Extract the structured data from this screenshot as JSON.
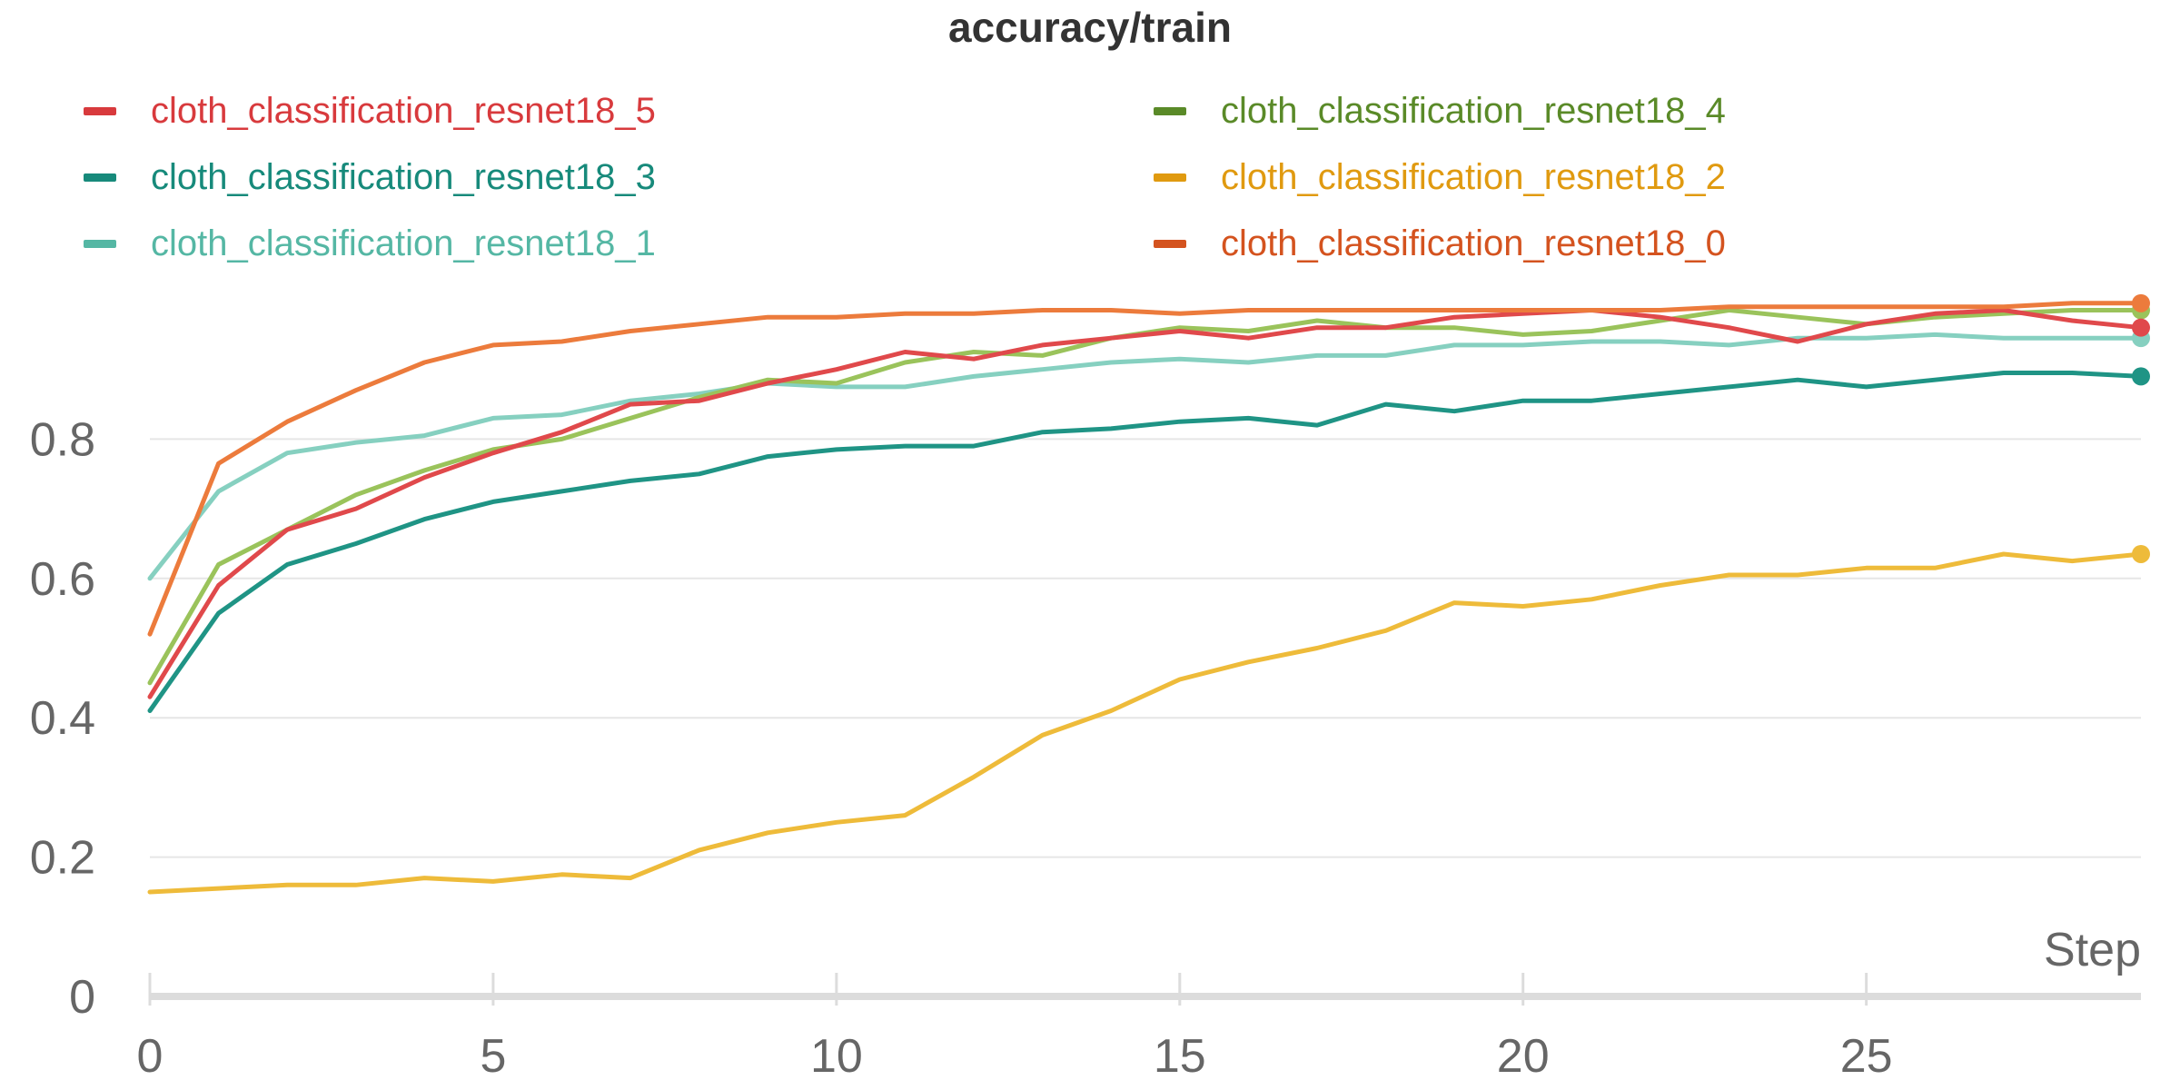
{
  "chart_data": {
    "type": "line",
    "title": "accuracy/train",
    "xlabel": "Step",
    "ylabel": "",
    "xlim": [
      0,
      29
    ],
    "ylim": [
      0,
      1.0
    ],
    "x_ticks": [
      0,
      5,
      10,
      15,
      20,
      25
    ],
    "y_ticks": [
      0,
      0.2,
      0.4,
      0.6,
      0.8
    ],
    "x_tick_labels": [
      "0",
      "5",
      "10",
      "15",
      "20",
      "25"
    ],
    "y_tick_labels": [
      "0",
      "0.2",
      "0.4",
      "0.6",
      "0.8"
    ],
    "grid": "horizontal",
    "legend_position": "top",
    "x": [
      0,
      1,
      2,
      3,
      4,
      5,
      6,
      7,
      8,
      9,
      10,
      11,
      12,
      13,
      14,
      15,
      16,
      17,
      18,
      19,
      20,
      21,
      22,
      23,
      24,
      25,
      26,
      27,
      28,
      29
    ],
    "series": [
      {
        "name": "cloth_classification_resnet18_5",
        "color": "#e0494b",
        "legend_color": "#d83a3d",
        "values": [
          0.43,
          0.59,
          0.67,
          0.7,
          0.745,
          0.78,
          0.81,
          0.85,
          0.855,
          0.88,
          0.9,
          0.925,
          0.915,
          0.935,
          0.945,
          0.955,
          0.945,
          0.96,
          0.96,
          0.975,
          0.98,
          0.985,
          0.975,
          0.96,
          0.94,
          0.965,
          0.98,
          0.985,
          0.97,
          0.96
        ]
      },
      {
        "name": "cloth_classification_resnet18_4",
        "color": "#9ac35b",
        "legend_color": "#5a8a28",
        "values": [
          0.45,
          0.62,
          0.67,
          0.72,
          0.755,
          0.785,
          0.8,
          0.83,
          0.86,
          0.885,
          0.88,
          0.91,
          0.925,
          0.92,
          0.945,
          0.96,
          0.955,
          0.97,
          0.96,
          0.96,
          0.95,
          0.955,
          0.97,
          0.985,
          0.975,
          0.965,
          0.975,
          0.98,
          0.985,
          0.985
        ]
      },
      {
        "name": "cloth_classification_resnet18_3",
        "color": "#1f9485",
        "legend_color": "#178a7b",
        "values": [
          0.41,
          0.55,
          0.62,
          0.65,
          0.685,
          0.71,
          0.725,
          0.74,
          0.75,
          0.775,
          0.785,
          0.79,
          0.79,
          0.81,
          0.815,
          0.825,
          0.83,
          0.82,
          0.85,
          0.84,
          0.855,
          0.855,
          0.865,
          0.875,
          0.885,
          0.875,
          0.885,
          0.895,
          0.895,
          0.89
        ]
      },
      {
        "name": "cloth_classification_resnet18_2",
        "color": "#eebb3a",
        "legend_color": "#e09a10",
        "values": [
          0.15,
          0.155,
          0.16,
          0.16,
          0.17,
          0.165,
          0.175,
          0.17,
          0.21,
          0.235,
          0.25,
          0.26,
          0.315,
          0.375,
          0.41,
          0.455,
          0.48,
          0.5,
          0.525,
          0.565,
          0.56,
          0.57,
          0.59,
          0.605,
          0.605,
          0.615,
          0.615,
          0.635,
          0.625,
          0.635
        ]
      },
      {
        "name": "cloth_classification_resnet18_1",
        "color": "#86d0c0",
        "legend_color": "#55b7a4",
        "values": [
          0.6,
          0.725,
          0.78,
          0.795,
          0.805,
          0.83,
          0.835,
          0.855,
          0.865,
          0.88,
          0.875,
          0.875,
          0.89,
          0.9,
          0.91,
          0.915,
          0.91,
          0.92,
          0.92,
          0.935,
          0.935,
          0.94,
          0.94,
          0.935,
          0.945,
          0.945,
          0.95,
          0.945,
          0.945,
          0.945
        ]
      },
      {
        "name": "cloth_classification_resnet18_0",
        "color": "#ec7b3c",
        "legend_color": "#d4531f",
        "values": [
          0.52,
          0.765,
          0.825,
          0.87,
          0.91,
          0.935,
          0.94,
          0.955,
          0.965,
          0.975,
          0.975,
          0.98,
          0.98,
          0.985,
          0.985,
          0.98,
          0.985,
          0.985,
          0.985,
          0.985,
          0.985,
          0.985,
          0.985,
          0.99,
          0.99,
          0.99,
          0.99,
          0.99,
          0.995,
          0.995
        ]
      }
    ]
  },
  "legend": {
    "items": [
      {
        "label": "cloth_classification_resnet18_5",
        "color": "#d83a3d"
      },
      {
        "label": "cloth_classification_resnet18_4",
        "color": "#5a8a28"
      },
      {
        "label": "cloth_classification_resnet18_3",
        "color": "#178a7b"
      },
      {
        "label": "cloth_classification_resnet18_2",
        "color": "#e09a10"
      },
      {
        "label": "cloth_classification_resnet18_1",
        "color": "#55b7a4"
      },
      {
        "label": "cloth_classification_resnet18_0",
        "color": "#d4531f"
      }
    ]
  },
  "colors": {
    "grid": "#e6e6e6",
    "axis": "#dcdcdc",
    "tick_text": "#666666",
    "title": "#333333"
  }
}
